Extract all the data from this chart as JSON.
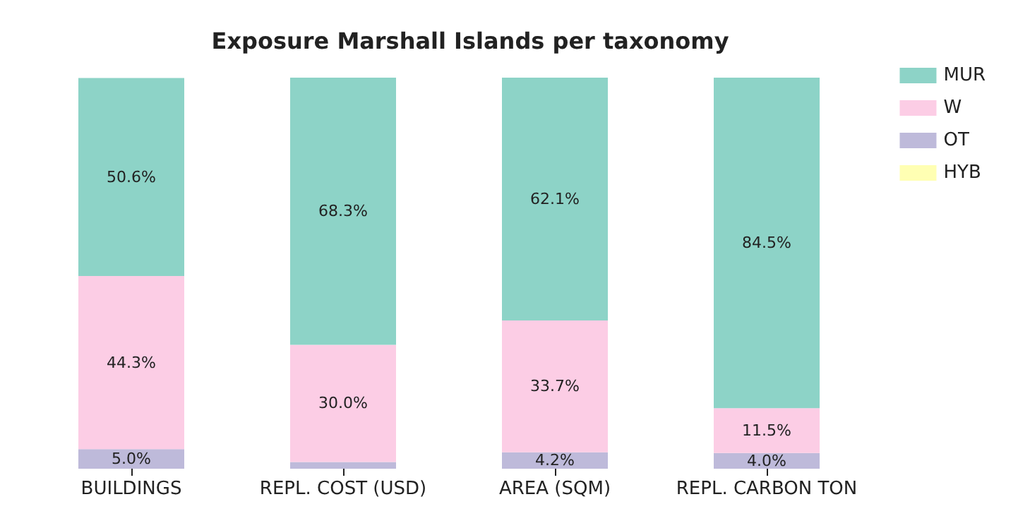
{
  "chart_data": {
    "type": "bar",
    "stacked": true,
    "title": "Exposure Marshall Islands per taxonomy",
    "categories": [
      "BUILDINGS",
      "REPL. COST (USD)",
      "AREA (SQM)",
      "REPL. CARBON TON"
    ],
    "legend": "top right",
    "series": [
      {
        "name": "OT",
        "color": "#bebada",
        "values": [
          5.0,
          1.7,
          4.2,
          4.0
        ],
        "value_labels": [
          "5.0%",
          null,
          "4.2%",
          "4.0%"
        ]
      },
      {
        "name": "W",
        "color": "#fccde5",
        "values": [
          44.3,
          30.0,
          33.7,
          11.5
        ],
        "value_labels": [
          "44.3%",
          "30.0%",
          "33.7%",
          "11.5%"
        ]
      },
      {
        "name": "MUR",
        "color": "#8dd3c7",
        "values": [
          50.6,
          68.3,
          62.1,
          84.5
        ],
        "value_labels": [
          "50.6%",
          "68.3%",
          "62.1%",
          "84.5%"
        ]
      },
      {
        "name": "HYB",
        "color": "#ffffb3",
        "values": [
          null,
          null,
          null,
          null
        ],
        "value_labels": [
          null,
          null,
          null,
          null
        ]
      }
    ]
  }
}
